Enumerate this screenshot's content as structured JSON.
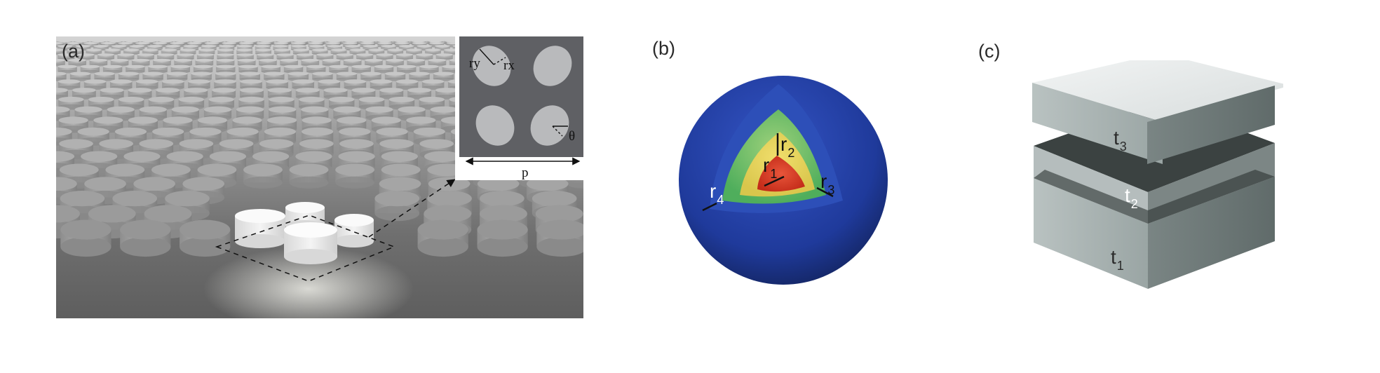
{
  "panels": {
    "a": {
      "label": "(a)",
      "inset": {
        "ry": "ry",
        "rx": "rx",
        "theta": "θ",
        "p": "p"
      }
    },
    "b": {
      "label": "(b)",
      "radii": [
        {
          "base": "r",
          "sub": "1"
        },
        {
          "base": "r",
          "sub": "2"
        },
        {
          "base": "r",
          "sub": "3"
        },
        {
          "base": "r",
          "sub": "4"
        }
      ]
    },
    "c": {
      "label": "(c)",
      "layers": [
        {
          "base": "t",
          "sub": "3"
        },
        {
          "base": "t",
          "sub": "2"
        },
        {
          "base": "t",
          "sub": "1"
        }
      ]
    }
  },
  "colors": {
    "sphere_outer": "#1e3c9a",
    "shell_green": "#6cc46a",
    "shell_yellow": "#e7d25a",
    "core_red": "#d63a25",
    "slab_light": "#e8eced",
    "slab_dark": "#6d7877"
  }
}
